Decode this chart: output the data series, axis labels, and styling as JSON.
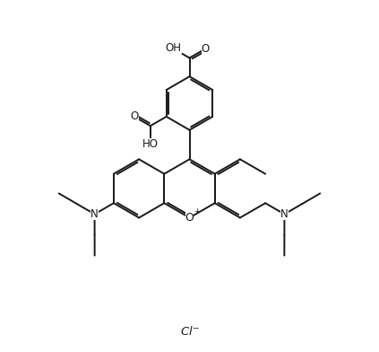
{
  "background_color": "#ffffff",
  "line_color": "#1a1a1a",
  "line_width": 1.4,
  "font_size": 8.5,
  "figsize": [
    4.23,
    3.92
  ],
  "dpi": 100,
  "xlim": [
    0,
    10
  ],
  "ylim": [
    0,
    9.8
  ]
}
